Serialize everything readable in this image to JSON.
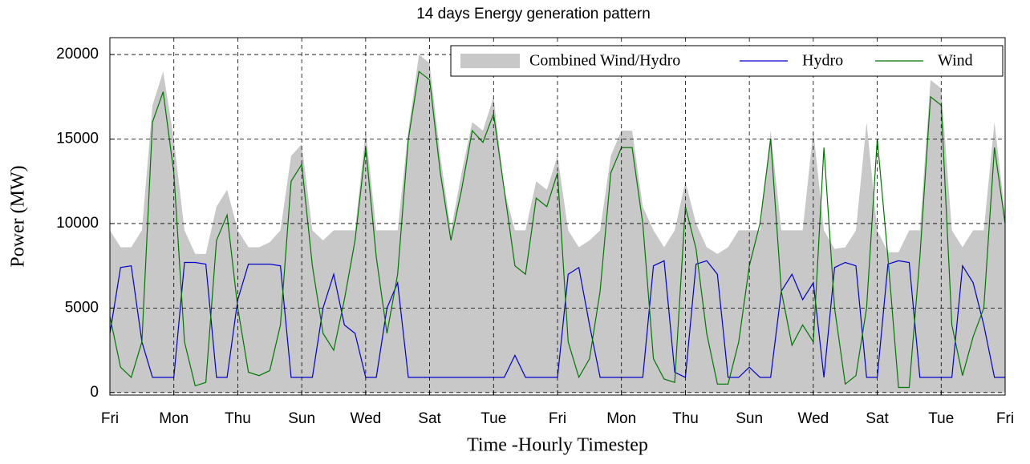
{
  "chart_data": {
    "type": "line",
    "title": "14 days Energy generation pattern",
    "xlabel": "Time -Hourly Timestep",
    "ylabel": "Power (MW)",
    "x": [
      0,
      4,
      8,
      12,
      16,
      20,
      24,
      28,
      32,
      36,
      40,
      44,
      48,
      52,
      56,
      60,
      64,
      68,
      72,
      76,
      80,
      84,
      88,
      92,
      96,
      100,
      104,
      108,
      112,
      116,
      120,
      124,
      128,
      132,
      136,
      140,
      144,
      148,
      152,
      156,
      160,
      164,
      168,
      172,
      176,
      180,
      184,
      188,
      192,
      196,
      200,
      204,
      208,
      212,
      216,
      220,
      224,
      228,
      232,
      236,
      240,
      244,
      248,
      252,
      256,
      260,
      264,
      268,
      272,
      276,
      280,
      284,
      288,
      292,
      296,
      300,
      304,
      308,
      312,
      316,
      320,
      324,
      328,
      332,
      336
    ],
    "xlim": [
      0,
      336
    ],
    "xticks": [
      {
        "value": 0,
        "label": "Fri"
      },
      {
        "value": 24,
        "label": "Mon"
      },
      {
        "value": 48,
        "label": "Thu"
      },
      {
        "value": 72,
        "label": "Sun"
      },
      {
        "value": 96,
        "label": "Wed"
      },
      {
        "value": 120,
        "label": "Sat"
      },
      {
        "value": 144,
        "label": "Tue"
      },
      {
        "value": 168,
        "label": "Fri"
      },
      {
        "value": 192,
        "label": "Mon"
      },
      {
        "value": 216,
        "label": "Thu"
      },
      {
        "value": 240,
        "label": "Sun"
      },
      {
        "value": 264,
        "label": "Wed"
      },
      {
        "value": 288,
        "label": "Sat"
      },
      {
        "value": 312,
        "label": "Tue"
      },
      {
        "value": 336,
        "label": "Fri"
      }
    ],
    "ylim": [
      -150,
      21000
    ],
    "yticks": [
      0,
      5000,
      10000,
      15000,
      20000
    ],
    "grid": true,
    "legend": "upper right",
    "series": [
      {
        "name": "Combined Wind/Hydro",
        "color": "#c8c8c8",
        "fill": true,
        "values": [
          9600,
          8600,
          8600,
          9600,
          17000,
          19000,
          15000,
          9600,
          8200,
          8200,
          11000,
          12000,
          9600,
          8600,
          8600,
          8900,
          9600,
          14000,
          14700,
          9600,
          9000,
          9600,
          9600,
          9600,
          15500,
          9600,
          9600,
          9600,
          15500,
          20000,
          19500,
          14000,
          9600,
          13000,
          16000,
          15500,
          17500,
          12000,
          9600,
          9600,
          12500,
          12000,
          14000,
          9600,
          8600,
          9000,
          9600,
          14000,
          15500,
          15500,
          11000,
          9600,
          8600,
          9600,
          12500,
          10000,
          8600,
          8200,
          8600,
          9600,
          9600,
          9600,
          15500,
          9600,
          9600,
          9600,
          15500,
          9600,
          8500,
          8600,
          9600,
          16000,
          9600,
          8300,
          8300,
          9600,
          9600,
          18500,
          18000,
          9600,
          8600,
          9600,
          9600,
          16000,
          10500
        ]
      },
      {
        "name": "Hydro",
        "color": "#0000cc",
        "values": [
          3500,
          7400,
          7500,
          3000,
          900,
          900,
          900,
          7700,
          7700,
          7600,
          900,
          900,
          5500,
          7600,
          7600,
          7600,
          7500,
          900,
          900,
          900,
          5000,
          7000,
          4000,
          3500,
          900,
          900,
          5000,
          6500,
          900,
          900,
          900,
          900,
          900,
          900,
          900,
          900,
          900,
          900,
          2200,
          900,
          900,
          900,
          900,
          7000,
          7400,
          4000,
          900,
          900,
          900,
          900,
          900,
          7500,
          7800,
          1200,
          900,
          7600,
          7800,
          7000,
          900,
          900,
          1500,
          900,
          900,
          6000,
          7000,
          5500,
          6500,
          900,
          7400,
          7700,
          7500,
          900,
          900,
          7600,
          7800,
          7700,
          900,
          900,
          900,
          900,
          7500,
          6500,
          4000,
          900,
          900
        ]
      },
      {
        "name": "Wind",
        "color": "#007700",
        "values": [
          4500,
          1500,
          900,
          3000,
          16000,
          17800,
          13000,
          3000,
          400,
          600,
          9000,
          10500,
          5000,
          1200,
          1000,
          1300,
          4000,
          12500,
          13500,
          7500,
          3500,
          2500,
          5500,
          9000,
          14500,
          8000,
          3500,
          7000,
          15000,
          19000,
          18500,
          13000,
          9000,
          12000,
          15500,
          14800,
          16500,
          12000,
          7500,
          7000,
          11500,
          11000,
          13000,
          3000,
          900,
          2000,
          6000,
          13000,
          14500,
          14500,
          10000,
          2000,
          800,
          600,
          11000,
          8500,
          3500,
          500,
          500,
          3000,
          7500,
          10000,
          15000,
          6000,
          2800,
          4000,
          3000,
          14500,
          5000,
          500,
          1000,
          5000,
          15000,
          8000,
          300,
          300,
          8000,
          17500,
          17000,
          4000,
          1000,
          3300,
          5000,
          14500,
          10000
        ]
      }
    ]
  }
}
